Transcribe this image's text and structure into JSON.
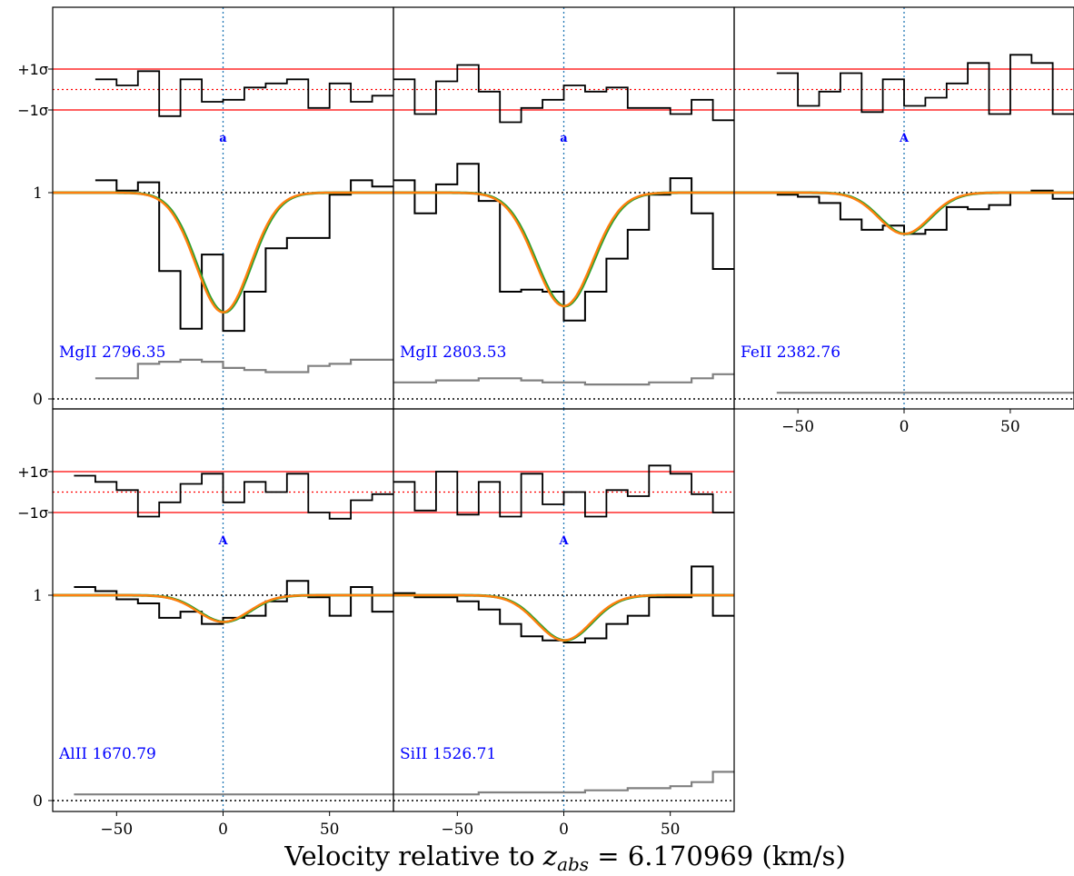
{
  "chart_data": {
    "type": "line",
    "xlabel_prefix": "Velocity relative to ",
    "xlabel_z": "z",
    "xlabel_sub": "abs",
    "xlabel_suffix": " = 6.170969 (km/s)",
    "xlim": [
      -80,
      80
    ],
    "xticks": [
      -50,
      0,
      50
    ],
    "xtick_labels": [
      "−50",
      "0",
      "50"
    ],
    "flux_ticks": [
      0,
      1
    ],
    "flux_tick_labels": [
      "0",
      "1"
    ],
    "residual_ticks": [
      "+1σ",
      "−1σ"
    ],
    "colors": {
      "data": "#000000",
      "error": "#808080",
      "model_a": "#2ca02c",
      "model_b": "#ff7f0e",
      "sigma": "#ff0000",
      "component": "#1f77b4",
      "label": "#0000ff"
    },
    "panels": [
      {
        "name": "MgII 2796.35",
        "component_label": "a",
        "component_v": 0,
        "data_v": [
          -55,
          -45,
          -35,
          -25,
          -15,
          -5,
          5,
          15,
          25,
          35,
          45,
          55,
          65,
          75
        ],
        "flux": [
          1.06,
          1.01,
          1.05,
          0.62,
          0.34,
          0.7,
          0.33,
          0.52,
          0.73,
          0.78,
          0.78,
          0.99,
          1.06,
          1.03
        ],
        "error": [
          0.1,
          0.1,
          0.17,
          0.18,
          0.19,
          0.18,
          0.15,
          0.14,
          0.13,
          0.13,
          0.16,
          0.17,
          0.19,
          0.19
        ],
        "residual": [
          0.5,
          0.2,
          0.9,
          -1.3,
          0.5,
          -0.6,
          -0.5,
          0.1,
          0.3,
          0.5,
          -0.9,
          0.3,
          -0.6,
          -0.3
        ],
        "model_depth": 0.58,
        "model_width": 18
      },
      {
        "name": "MgII 2803.53",
        "component_label": "a",
        "component_v": 0,
        "data_v": [
          -75,
          -65,
          -55,
          -45,
          -35,
          -25,
          -15,
          -5,
          5,
          15,
          25,
          35,
          45,
          55,
          65,
          75
        ],
        "flux": [
          1.06,
          0.9,
          1.04,
          1.14,
          0.96,
          0.52,
          0.53,
          0.52,
          0.38,
          0.52,
          0.68,
          0.82,
          0.99,
          1.07,
          0.9,
          0.63
        ],
        "error": [
          0.08,
          0.08,
          0.09,
          0.09,
          0.1,
          0.1,
          0.09,
          0.08,
          0.08,
          0.07,
          0.07,
          0.07,
          0.08,
          0.08,
          0.1,
          0.12
        ],
        "residual": [
          0.5,
          -1.2,
          0.4,
          1.2,
          -0.1,
          -1.6,
          -0.9,
          -0.5,
          0.2,
          -0.1,
          0.1,
          -0.9,
          -0.9,
          -1.2,
          -0.5,
          -1.5
        ],
        "model_depth": 0.55,
        "model_width": 19
      },
      {
        "name": "FeII 2382.76",
        "component_label": "A",
        "component_v": 0,
        "data_v": [
          -55,
          -45,
          -35,
          -25,
          -15,
          -5,
          5,
          15,
          25,
          35,
          45,
          55,
          65,
          75
        ],
        "flux": [
          0.99,
          0.98,
          0.95,
          0.87,
          0.82,
          0.84,
          0.8,
          0.82,
          0.93,
          0.92,
          0.94,
          1.0,
          1.01,
          0.97
        ],
        "error": [
          0.03,
          0.03,
          0.03,
          0.03,
          0.03,
          0.03,
          0.03,
          0.03,
          0.03,
          0.03,
          0.03,
          0.03,
          0.03,
          0.03
        ],
        "residual": [
          0.8,
          -0.8,
          -0.1,
          0.8,
          -1.1,
          0.5,
          -0.8,
          -0.4,
          0.3,
          1.3,
          -1.2,
          1.7,
          1.3,
          -1.2
        ],
        "model_depth": 0.2,
        "model_width": 17
      },
      {
        "name": "AlII 1670.79",
        "component_label": "A",
        "component_v": 0,
        "data_v": [
          -65,
          -55,
          -45,
          -35,
          -25,
          -15,
          -5,
          5,
          15,
          25,
          35,
          45,
          55,
          65,
          75
        ],
        "flux": [
          1.04,
          1.02,
          0.98,
          0.96,
          0.89,
          0.92,
          0.86,
          0.89,
          0.9,
          0.97,
          1.07,
          0.99,
          0.9,
          1.04,
          0.92
        ],
        "error": [
          0.03,
          0.03,
          0.03,
          0.03,
          0.03,
          0.03,
          0.03,
          0.03,
          0.03,
          0.03,
          0.03,
          0.03,
          0.03,
          0.03,
          0.03
        ],
        "residual": [
          0.8,
          0.5,
          0.1,
          -1.2,
          -0.5,
          0.4,
          0.9,
          -0.5,
          0.5,
          0.0,
          0.9,
          -1.0,
          -1.3,
          -0.4,
          -0.1
        ],
        "model_depth": 0.13,
        "model_width": 17
      },
      {
        "name": "SiII 1526.71",
        "component_label": "A",
        "component_v": 0,
        "data_v": [
          -75,
          -65,
          -55,
          -45,
          -35,
          -25,
          -15,
          -5,
          5,
          15,
          25,
          35,
          45,
          55,
          65,
          75
        ],
        "flux": [
          1.01,
          0.99,
          0.99,
          0.97,
          0.93,
          0.86,
          0.8,
          0.78,
          0.77,
          0.79,
          0.86,
          0.9,
          0.99,
          0.99,
          1.14,
          0.9
        ],
        "error": [
          0.03,
          0.03,
          0.03,
          0.03,
          0.04,
          0.04,
          0.04,
          0.04,
          0.04,
          0.05,
          0.05,
          0.06,
          0.06,
          0.07,
          0.09,
          0.14
        ],
        "residual": [
          0.5,
          -0.9,
          1.0,
          -1.1,
          0.5,
          -1.2,
          0.9,
          -0.6,
          0.0,
          -1.2,
          0.1,
          -0.2,
          1.3,
          0.9,
          -0.1,
          -1.0
        ],
        "model_depth": 0.22,
        "model_width": 18
      }
    ]
  }
}
